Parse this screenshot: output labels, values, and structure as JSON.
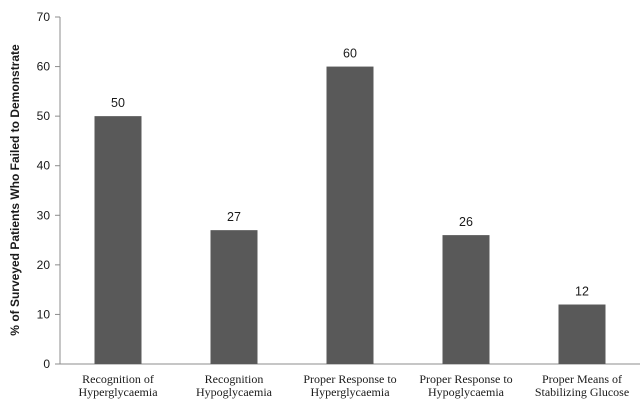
{
  "chart_data": {
    "type": "bar",
    "title": "",
    "xlabel": "",
    "ylabel": "% of Surveyed Patients Who Failed to Demonstrate",
    "ylim": [
      0,
      70
    ],
    "yticks": [
      0,
      10,
      20,
      30,
      40,
      50,
      60,
      70
    ],
    "grid": false,
    "legend": "none",
    "categories": [
      [
        "Recognition of",
        "Hyperglycaemia"
      ],
      [
        "Recognition",
        "Hypoglycaemia"
      ],
      [
        "Proper Response to",
        "Hyperglycaemia"
      ],
      [
        "Proper Response to",
        "Hypoglycaemia"
      ],
      [
        "Proper Means of",
        "Stabilizing Glucose"
      ]
    ],
    "values": [
      50,
      27,
      60,
      26,
      12
    ],
    "data_labels": [
      "50",
      "27",
      "60",
      "26",
      "12"
    ],
    "bar_color": "#595959",
    "axis_color": "#8c8c8c"
  }
}
